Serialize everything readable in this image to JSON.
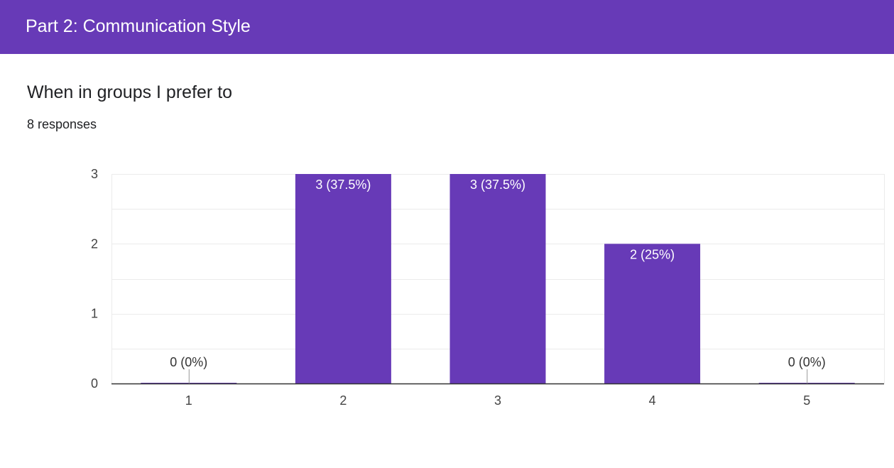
{
  "section": {
    "title": "Part 2: Communication Style"
  },
  "question": {
    "text": "When in groups I prefer to",
    "responses": "8 responses"
  },
  "colors": {
    "header": "#673ab7",
    "bar": "#673ab7",
    "grid": "#ebebeb",
    "axis": "#333333"
  },
  "chart_data": {
    "type": "bar",
    "categories": [
      "1",
      "2",
      "3",
      "4",
      "5"
    ],
    "values": [
      0,
      3,
      3,
      2,
      0
    ],
    "data_labels": [
      "0 (0%)",
      "3 (37.5%)",
      "3 (37.5%)",
      "2 (25%)",
      "0 (0%)"
    ],
    "title": "",
    "xlabel": "",
    "ylabel": "",
    "ylim": [
      0,
      3
    ],
    "yticks": [
      "0",
      "1",
      "2",
      "3"
    ],
    "grid": true,
    "legend": "none"
  }
}
